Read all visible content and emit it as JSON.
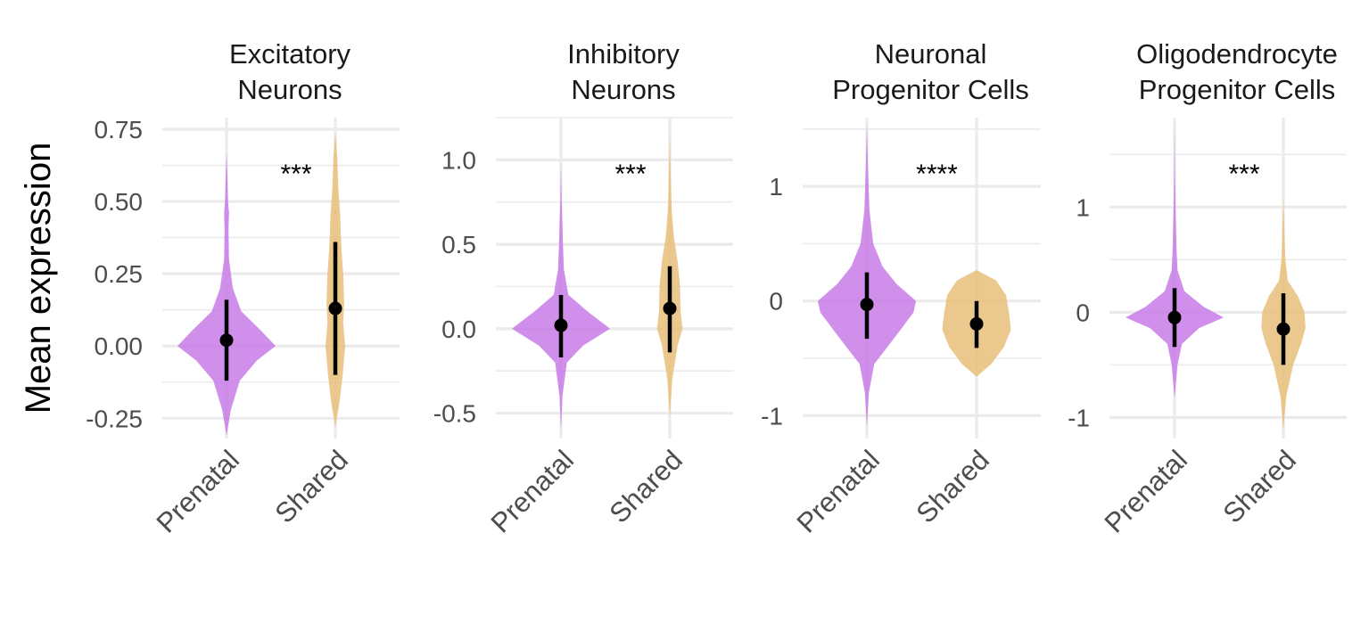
{
  "chart_data": {
    "type": "violin",
    "ylabel": "Mean expression",
    "categories": [
      "Prenatal",
      "Shared"
    ],
    "colors": {
      "Prenatal": "#c77be6",
      "Shared": "#e8c07a"
    },
    "panels": [
      {
        "title": [
          "Excitatory",
          "Neurons"
        ],
        "significance": "***",
        "ylim": [
          -0.32,
          0.79
        ],
        "yticks": [
          -0.25,
          0.0,
          0.25,
          0.5,
          0.75
        ],
        "ytick_labels": [
          "-0.25",
          "0.00",
          "0.25",
          "0.50",
          "0.75"
        ],
        "groups": [
          {
            "name": "Prenatal",
            "min": -0.31,
            "max": 0.67,
            "median": 0.02,
            "lower": -0.12,
            "upper": 0.16,
            "profile": [
              [
                -0.31,
                0.0
              ],
              [
                -0.22,
                0.09
              ],
              [
                -0.12,
                0.27
              ],
              [
                -0.05,
                0.62
              ],
              [
                0.0,
                1.0
              ],
              [
                0.05,
                0.72
              ],
              [
                0.12,
                0.3
              ],
              [
                0.2,
                0.13
              ],
              [
                0.3,
                0.05
              ],
              [
                0.4,
                0.04
              ],
              [
                0.46,
                0.05
              ],
              [
                0.5,
                0.03
              ],
              [
                0.6,
                0.015
              ],
              [
                0.67,
                0.0
              ]
            ]
          },
          {
            "name": "Shared",
            "min": -0.28,
            "max": 0.74,
            "median": 0.13,
            "lower": -0.1,
            "upper": 0.36,
            "profile": [
              [
                -0.28,
                0.0
              ],
              [
                -0.2,
                0.08
              ],
              [
                -0.1,
                0.15
              ],
              [
                0.0,
                0.2
              ],
              [
                0.08,
                0.16
              ],
              [
                0.15,
                0.18
              ],
              [
                0.25,
                0.16
              ],
              [
                0.35,
                0.12
              ],
              [
                0.45,
                0.1
              ],
              [
                0.55,
                0.06
              ],
              [
                0.65,
                0.04
              ],
              [
                0.74,
                0.0
              ]
            ]
          }
        ]
      },
      {
        "title": [
          "Inhibitory",
          "Neurons"
        ],
        "significance": "***",
        "ylim": [
          -0.65,
          1.25
        ],
        "yticks": [
          -0.5,
          0.0,
          0.5,
          1.0
        ],
        "ytick_labels": [
          "-0.5",
          "0.0",
          "0.5",
          "1.0"
        ],
        "groups": [
          {
            "name": "Prenatal",
            "min": -0.6,
            "max": 0.98,
            "median": 0.02,
            "lower": -0.17,
            "upper": 0.2,
            "profile": [
              [
                -0.6,
                0.0
              ],
              [
                -0.4,
                0.03
              ],
              [
                -0.2,
                0.12
              ],
              [
                -0.1,
                0.45
              ],
              [
                0.0,
                1.0
              ],
              [
                0.1,
                0.55
              ],
              [
                0.2,
                0.15
              ],
              [
                0.35,
                0.06
              ],
              [
                0.5,
                0.04
              ],
              [
                0.62,
                0.03
              ],
              [
                0.75,
                0.015
              ],
              [
                0.98,
                0.0
              ]
            ]
          },
          {
            "name": "Shared",
            "min": -0.53,
            "max": 1.15,
            "median": 0.12,
            "lower": -0.14,
            "upper": 0.37,
            "profile": [
              [
                -0.53,
                0.0
              ],
              [
                -0.3,
                0.05
              ],
              [
                -0.1,
                0.16
              ],
              [
                0.0,
                0.26
              ],
              [
                0.1,
                0.22
              ],
              [
                0.25,
                0.21
              ],
              [
                0.4,
                0.16
              ],
              [
                0.55,
                0.08
              ],
              [
                0.7,
                0.04
              ],
              [
                0.9,
                0.02
              ],
              [
                1.15,
                0.0
              ]
            ]
          }
        ]
      },
      {
        "title": [
          "Neuronal",
          "Progenitor Cells"
        ],
        "significance": "****",
        "ylim": [
          -1.2,
          1.6
        ],
        "yticks": [
          -1,
          0,
          1
        ],
        "ytick_labels": [
          "-1",
          "0",
          "1"
        ],
        "groups": [
          {
            "name": "Prenatal",
            "min": -1.1,
            "max": 1.55,
            "median": -0.03,
            "lower": -0.33,
            "upper": 0.25,
            "profile": [
              [
                -1.1,
                0.0
              ],
              [
                -0.8,
                0.04
              ],
              [
                -0.55,
                0.15
              ],
              [
                -0.3,
                0.6
              ],
              [
                -0.1,
                0.95
              ],
              [
                0.0,
                1.0
              ],
              [
                0.15,
                0.6
              ],
              [
                0.3,
                0.32
              ],
              [
                0.5,
                0.13
              ],
              [
                0.8,
                0.05
              ],
              [
                1.2,
                0.02
              ],
              [
                1.55,
                0.0
              ]
            ]
          },
          {
            "name": "Shared",
            "min": -0.66,
            "max": 0.27,
            "median": -0.2,
            "lower": -0.41,
            "upper": 0.0,
            "profile": [
              [
                -0.66,
                0.0
              ],
              [
                -0.55,
                0.3
              ],
              [
                -0.4,
                0.56
              ],
              [
                -0.25,
                0.7
              ],
              [
                -0.1,
                0.66
              ],
              [
                0.05,
                0.6
              ],
              [
                0.18,
                0.4
              ],
              [
                0.27,
                0.0
              ]
            ]
          }
        ]
      },
      {
        "title": [
          "Oligodendrocyte",
          "Progenitor Cells"
        ],
        "significance": "***",
        "ylim": [
          -1.2,
          1.85
        ],
        "yticks": [
          -1,
          0,
          1
        ],
        "ytick_labels": [
          "-1",
          "0",
          "1"
        ],
        "groups": [
          {
            "name": "Prenatal",
            "min": -0.82,
            "max": 1.8,
            "median": -0.05,
            "lower": -0.33,
            "upper": 0.23,
            "profile": [
              [
                -0.82,
                0.0
              ],
              [
                -0.5,
                0.06
              ],
              [
                -0.3,
                0.15
              ],
              [
                -0.15,
                0.5
              ],
              [
                -0.05,
                1.0
              ],
              [
                0.05,
                0.6
              ],
              [
                0.2,
                0.2
              ],
              [
                0.4,
                0.06
              ],
              [
                0.6,
                0.04
              ],
              [
                1.0,
                0.02
              ],
              [
                1.3,
                0.01
              ],
              [
                1.8,
                0.0
              ]
            ]
          },
          {
            "name": "Shared",
            "min": -1.12,
            "max": 1.1,
            "median": -0.16,
            "lower": -0.5,
            "upper": 0.18,
            "profile": [
              [
                -1.12,
                0.0
              ],
              [
                -0.8,
                0.06
              ],
              [
                -0.5,
                0.2
              ],
              [
                -0.3,
                0.36
              ],
              [
                -0.15,
                0.45
              ],
              [
                0.0,
                0.43
              ],
              [
                0.15,
                0.3
              ],
              [
                0.3,
                0.09
              ],
              [
                0.5,
                0.04
              ],
              [
                0.8,
                0.02
              ],
              [
                1.1,
                0.0
              ]
            ]
          }
        ]
      }
    ]
  }
}
